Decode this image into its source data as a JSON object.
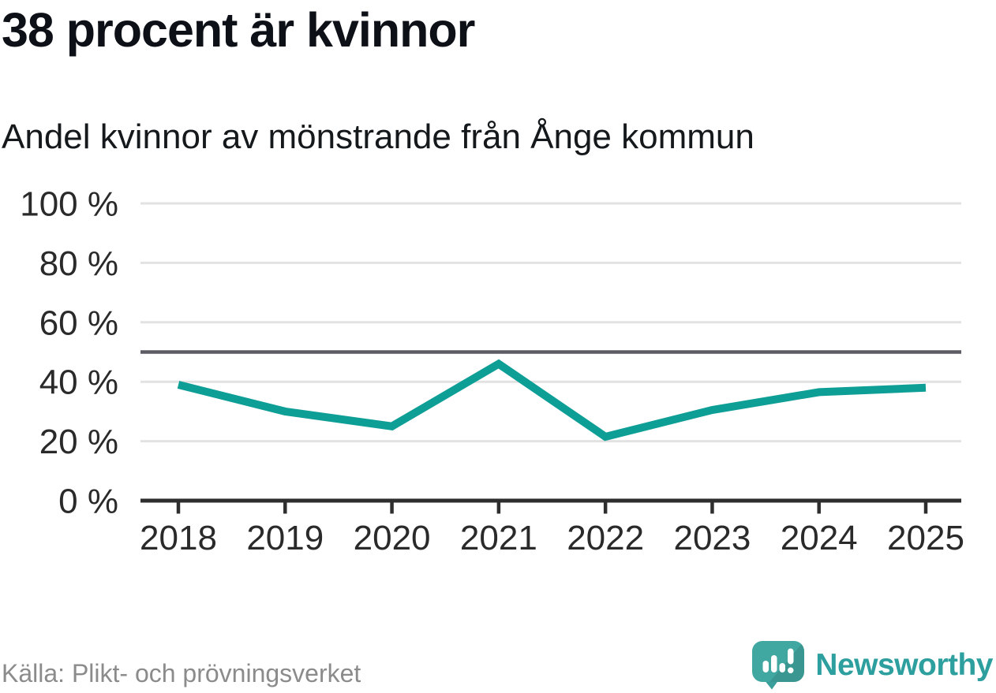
{
  "header": {
    "title": "38 procent är kvinnor",
    "subtitle": "Andel kvinnor av mönstrande från Ånge kommun"
  },
  "chart_data": {
    "type": "line",
    "title": "38 procent är kvinnor",
    "subtitle": "Andel kvinnor av mönstrande från Ånge kommun",
    "categories": [
      "2018",
      "2019",
      "2020",
      "2021",
      "2022",
      "2023",
      "2024",
      "2025"
    ],
    "series": [
      {
        "name": "Andel kvinnor av mönstrande",
        "values": [
          39,
          30,
          25,
          46,
          21.5,
          30.5,
          36.5,
          38
        ]
      }
    ],
    "unit": "%",
    "xlabel": "",
    "ylabel": "",
    "ylim": [
      0,
      100
    ],
    "yticks": [
      {
        "label": "0 %",
        "value": 0
      },
      {
        "label": "20 %",
        "value": 20
      },
      {
        "label": "40 %",
        "value": 40
      },
      {
        "label": "60 %",
        "value": 60
      },
      {
        "label": "80 %",
        "value": 80
      },
      {
        "label": "100 %",
        "value": 100
      }
    ],
    "reference_line": {
      "value": 50
    },
    "grid": true,
    "legend_position": "none",
    "line_color": "#0d9e96"
  },
  "footer": {
    "source": "Källa: Plikt- och prövningsverket",
    "brand_name": "Newsworthy"
  },
  "colors": {
    "accent": "#0d9e96",
    "brand_teal": "#2d9f9e",
    "logo_icon_teal": "#41a7a1",
    "grid": "#e2e2e2",
    "axis": "#2e2e2e",
    "reference": "#5d5b63",
    "tick_text": "#2a2a2a",
    "text_dark": "#0d1117",
    "text_muted": "#8b8b8b"
  }
}
